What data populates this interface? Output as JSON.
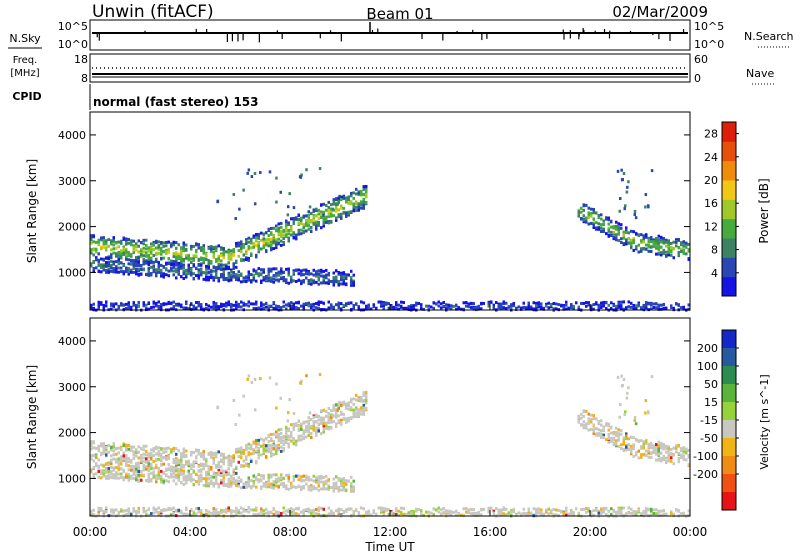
{
  "header": {
    "station": "Unwin (fitACF)",
    "beam": "Beam 01",
    "date": "02/Mar/2009"
  },
  "chart_data": [
    {
      "type": "line",
      "title": "",
      "panel": "noise",
      "left_label": "N.Sky",
      "right_label": "N.Search",
      "left_ticks": [
        "10^5",
        "10^0"
      ],
      "right_ticks": [
        "10^5",
        "10^0"
      ]
    },
    {
      "type": "line",
      "panel": "frequency",
      "left_label": "Freq.",
      "left_unit": "[MHz]",
      "left_ticks": [
        18,
        8
      ],
      "right_label": "Nave",
      "right_ticks": [
        60,
        0
      ]
    },
    {
      "type": "table",
      "panel": "cpid",
      "label": "CPID",
      "value": "normal (fast stereo) 153"
    },
    {
      "type": "heatmap",
      "panel": "power",
      "ylabel": "Slant Range [km]",
      "ylim": [
        180,
        4500
      ],
      "yticks": [
        1000,
        2000,
        3000,
        4000
      ],
      "colorbar_label": "Power [dB]",
      "colorbar_ticks": [
        4,
        8,
        12,
        16,
        20,
        24,
        28
      ],
      "colorbar_range": [
        0,
        30
      ],
      "colors": [
        "#1414e6",
        "#2846b4",
        "#3c8264",
        "#46aa3c",
        "#a0c82a",
        "#f0c814",
        "#f08c0a",
        "#e6500a",
        "#dc1e0a"
      ],
      "echo_bands": [
        {
          "t_start": 0.0,
          "t_end": 11.0,
          "r_start": 1600,
          "r_mid": 1350,
          "r_end": 2700,
          "width": 500,
          "strength": 16
        },
        {
          "t_start": 0.0,
          "t_end": 10.5,
          "r_start": 1200,
          "r_mid": 1000,
          "r_end": 900,
          "width": 320,
          "strength": 8
        },
        {
          "t_start": 19.5,
          "t_end": 24.0,
          "r_start": 2400,
          "r_mid": 1700,
          "r_end": 1500,
          "width": 420,
          "strength": 14
        },
        {
          "t_start": 0.0,
          "t_end": 24.0,
          "r_start": 300,
          "r_mid": 300,
          "r_end": 300,
          "width": 180,
          "strength": 5
        }
      ]
    },
    {
      "type": "heatmap",
      "panel": "velocity",
      "ylabel": "Slant Range [km]",
      "ylim": [
        180,
        4500
      ],
      "yticks": [
        1000,
        2000,
        3000,
        4000
      ],
      "xlabel": "Time UT",
      "xticks": [
        "00:00",
        "04:00",
        "08:00",
        "12:00",
        "16:00",
        "20:00",
        "00:00"
      ],
      "xlim_hours": [
        0,
        24
      ],
      "colorbar_label": "Velocity [m s^-1]",
      "colorbar_ticks": [
        200,
        100,
        50,
        15,
        -15,
        -50,
        -100,
        -200
      ],
      "colors": [
        "#1428c8",
        "#285aa0",
        "#2d8c50",
        "#5ab43c",
        "#96d23c",
        "#c8c8c0",
        "#f0b414",
        "#f08c14",
        "#f05014",
        "#e61414"
      ]
    }
  ]
}
